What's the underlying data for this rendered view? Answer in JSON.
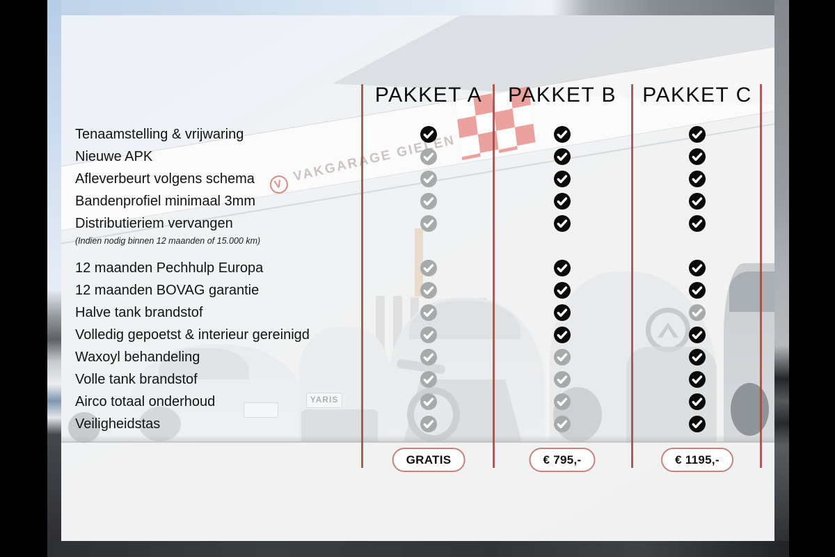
{
  "background": {
    "sign_text": "VAKGARAGE GIELEN",
    "sign_logo_letter": "V",
    "plate_text": "YARIS",
    "colors": {
      "separator_red": "#9e4440",
      "check_included": "#0a0a0a",
      "check_excluded": "#a7a9ab",
      "pill_border": "#c4827e",
      "flag_red": "#e8918c",
      "pillarbox": "#000000"
    }
  },
  "table": {
    "columns": [
      {
        "id": "A",
        "label": "PAKKET A",
        "price": "GRATIS"
      },
      {
        "id": "B",
        "label": "PAKKET B",
        "price": "€ 795,-"
      },
      {
        "id": "C",
        "label": "PAKKET C",
        "price": "€ 1195,-"
      }
    ],
    "groups": [
      {
        "rows": [
          {
            "label": "Tenaamstelling & vrijwaring",
            "checks": [
              "black",
              "black",
              "black"
            ]
          },
          {
            "label": "Nieuwe APK",
            "checks": [
              "gray",
              "black",
              "black"
            ]
          },
          {
            "label": "Afleverbeurt volgens schema",
            "checks": [
              "gray",
              "black",
              "black"
            ]
          },
          {
            "label": "Bandenprofiel minimaal 3mm",
            "checks": [
              "gray",
              "black",
              "black"
            ]
          },
          {
            "label": "Distributieriem vervangen",
            "note": "(Indien nodig binnen 12 maanden of 15.000 km)",
            "checks": [
              "gray",
              "black",
              "black"
            ]
          }
        ]
      },
      {
        "rows": [
          {
            "label": "12 maanden Pechhulp Europa",
            "checks": [
              "gray",
              "black",
              "black"
            ]
          },
          {
            "label": "12 maanden BOVAG garantie",
            "checks": [
              "gray",
              "black",
              "black"
            ]
          },
          {
            "label": "Halve tank brandstof",
            "checks": [
              "gray",
              "black",
              "gray"
            ]
          },
          {
            "label": "Volledig gepoetst & interieur gereinigd",
            "checks": [
              "gray",
              "black",
              "black"
            ]
          },
          {
            "label": "Waxoyl behandeling",
            "checks": [
              "gray",
              "gray",
              "black"
            ]
          },
          {
            "label": "Volle tank brandstof",
            "checks": [
              "gray",
              "gray",
              "black"
            ]
          },
          {
            "label": "Airco totaal onderhoud",
            "checks": [
              "gray",
              "gray",
              "black"
            ]
          },
          {
            "label": "Veiligheidstas",
            "checks": [
              "gray",
              "gray",
              "black"
            ]
          }
        ]
      }
    ]
  }
}
